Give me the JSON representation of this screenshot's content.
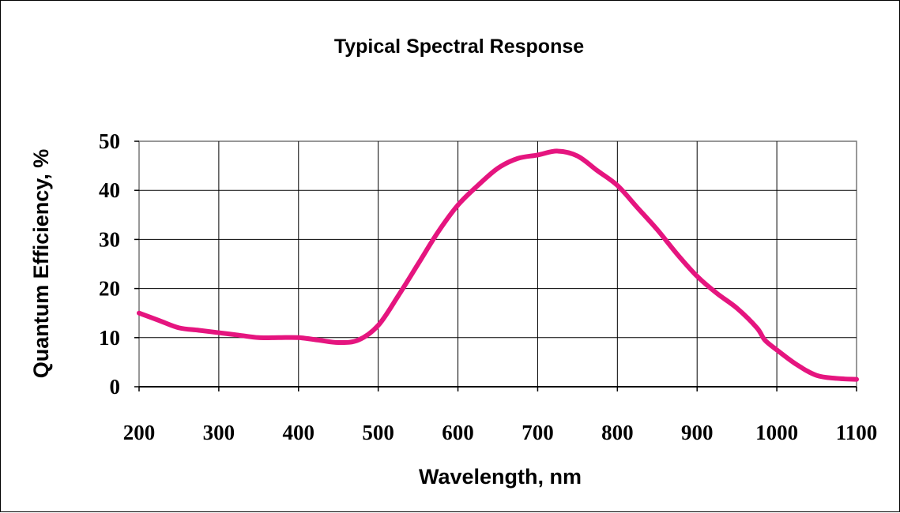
{
  "chart_data": {
    "type": "line",
    "title": "Typical Spectral Response",
    "xlabel": "Wavelength, nm",
    "ylabel": "Quantum Efficiency, %",
    "xlim": [
      200,
      1100
    ],
    "ylim": [
      0,
      50
    ],
    "xticks": [
      200,
      300,
      400,
      500,
      600,
      700,
      800,
      900,
      1000,
      1100
    ],
    "yticks": [
      0,
      10,
      20,
      30,
      40,
      50
    ],
    "grid": true,
    "series": [
      {
        "color": "#e5157f",
        "x": [
          200,
          225,
          250,
          275,
          300,
          325,
          350,
          375,
          400,
          425,
          450,
          475,
          500,
          525,
          550,
          575,
          600,
          625,
          650,
          675,
          700,
          725,
          750,
          775,
          800,
          825,
          850,
          875,
          900,
          925,
          950,
          975,
          985,
          1000,
          1025,
          1050,
          1075,
          1100
        ],
        "y": [
          15,
          13.5,
          12,
          11.5,
          11,
          10.5,
          10,
          10,
          10,
          9.5,
          9,
          9.5,
          12.5,
          18.5,
          25,
          31.5,
          37,
          41,
          44.5,
          46.5,
          47.2,
          48,
          47,
          44,
          41,
          36.5,
          32,
          27,
          22.5,
          19,
          16,
          12,
          9.5,
          7.5,
          4.5,
          2.3,
          1.7,
          1.5
        ]
      }
    ]
  }
}
